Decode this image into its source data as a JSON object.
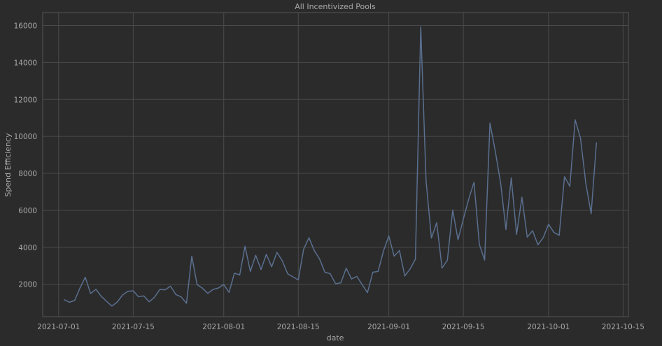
{
  "chart_data": {
    "type": "line",
    "title": "All Incentivized Pools",
    "xlabel": "date",
    "ylabel": "Spend Efficiency",
    "x_tick_labels": [
      "2021-07-01",
      "2021-07-15",
      "2021-08-01",
      "2021-08-15",
      "2021-09-01",
      "2021-09-15",
      "2021-10-01",
      "2021-10-15"
    ],
    "y_tick_values": [
      2000,
      4000,
      6000,
      8000,
      10000,
      12000,
      14000,
      16000
    ],
    "xlim": [
      "2021-06-28",
      "2021-10-16"
    ],
    "ylim": [
      250,
      16700
    ],
    "grid": true,
    "series": [
      {
        "color": "#5a6f8f",
        "points": [
          [
            "2021-07-02",
            1180
          ],
          [
            "2021-07-03",
            1030
          ],
          [
            "2021-07-04",
            1120
          ],
          [
            "2021-07-05",
            1800
          ],
          [
            "2021-07-06",
            2380
          ],
          [
            "2021-07-07",
            1500
          ],
          [
            "2021-07-08",
            1730
          ],
          [
            "2021-07-09",
            1350
          ],
          [
            "2021-07-10",
            1080
          ],
          [
            "2021-07-11",
            820
          ],
          [
            "2021-07-12",
            1040
          ],
          [
            "2021-07-13",
            1420
          ],
          [
            "2021-07-14",
            1620
          ],
          [
            "2021-07-15",
            1650
          ],
          [
            "2021-07-16",
            1330
          ],
          [
            "2021-07-17",
            1370
          ],
          [
            "2021-07-18",
            1050
          ],
          [
            "2021-07-19",
            1300
          ],
          [
            "2021-07-20",
            1720
          ],
          [
            "2021-07-21",
            1700
          ],
          [
            "2021-07-22",
            1900
          ],
          [
            "2021-07-23",
            1450
          ],
          [
            "2021-07-24",
            1320
          ],
          [
            "2021-07-25",
            970
          ],
          [
            "2021-07-26",
            3520
          ],
          [
            "2021-07-27",
            1980
          ],
          [
            "2021-07-28",
            1790
          ],
          [
            "2021-07-29",
            1510
          ],
          [
            "2021-07-30",
            1720
          ],
          [
            "2021-07-31",
            1800
          ],
          [
            "2021-08-01",
            1990
          ],
          [
            "2021-08-02",
            1560
          ],
          [
            "2021-08-03",
            2600
          ],
          [
            "2021-08-04",
            2510
          ],
          [
            "2021-08-05",
            4060
          ],
          [
            "2021-08-06",
            2700
          ],
          [
            "2021-08-07",
            3570
          ],
          [
            "2021-08-08",
            2800
          ],
          [
            "2021-08-09",
            3620
          ],
          [
            "2021-08-10",
            2950
          ],
          [
            "2021-08-11",
            3730
          ],
          [
            "2021-08-12",
            3270
          ],
          [
            "2021-08-13",
            2570
          ],
          [
            "2021-08-14",
            2400
          ],
          [
            "2021-08-15",
            2240
          ],
          [
            "2021-08-16",
            3890
          ],
          [
            "2021-08-17",
            4520
          ],
          [
            "2021-08-18",
            3830
          ],
          [
            "2021-08-19",
            3370
          ],
          [
            "2021-08-20",
            2650
          ],
          [
            "2021-08-21",
            2570
          ],
          [
            "2021-08-22",
            2030
          ],
          [
            "2021-08-23",
            2080
          ],
          [
            "2021-08-24",
            2870
          ],
          [
            "2021-08-25",
            2290
          ],
          [
            "2021-08-26",
            2430
          ],
          [
            "2021-08-27",
            1980
          ],
          [
            "2021-08-28",
            1550
          ],
          [
            "2021-08-29",
            2650
          ],
          [
            "2021-08-30",
            2700
          ],
          [
            "2021-08-31",
            3800
          ],
          [
            "2021-09-01",
            4620
          ],
          [
            "2021-09-02",
            3520
          ],
          [
            "2021-09-03",
            3830
          ],
          [
            "2021-09-04",
            2450
          ],
          [
            "2021-09-05",
            2830
          ],
          [
            "2021-09-06",
            3360
          ],
          [
            "2021-09-07",
            15920
          ],
          [
            "2021-09-08",
            7600
          ],
          [
            "2021-09-09",
            4500
          ],
          [
            "2021-09-10",
            5330
          ],
          [
            "2021-09-11",
            2880
          ],
          [
            "2021-09-12",
            3300
          ],
          [
            "2021-09-13",
            6020
          ],
          [
            "2021-09-14",
            4410
          ],
          [
            "2021-09-15",
            5530
          ],
          [
            "2021-09-16",
            6600
          ],
          [
            "2021-09-17",
            7520
          ],
          [
            "2021-09-18",
            4170
          ],
          [
            "2021-09-19",
            3310
          ],
          [
            "2021-09-20",
            10720
          ],
          [
            "2021-09-21",
            9200
          ],
          [
            "2021-09-22",
            7490
          ],
          [
            "2021-09-23",
            4960
          ],
          [
            "2021-09-24",
            7760
          ],
          [
            "2021-09-25",
            4700
          ],
          [
            "2021-09-26",
            6710
          ],
          [
            "2021-09-27",
            4550
          ],
          [
            "2021-09-28",
            4900
          ],
          [
            "2021-09-29",
            4140
          ],
          [
            "2021-09-30",
            4520
          ],
          [
            "2021-10-01",
            5250
          ],
          [
            "2021-10-02",
            4810
          ],
          [
            "2021-10-03",
            4650
          ],
          [
            "2021-10-04",
            7820
          ],
          [
            "2021-10-05",
            7300
          ],
          [
            "2021-10-06",
            10900
          ],
          [
            "2021-10-07",
            9900
          ],
          [
            "2021-10-08",
            7460
          ],
          [
            "2021-10-09",
            5820
          ],
          [
            "2021-10-10",
            9680
          ]
        ]
      }
    ]
  },
  "colors": {
    "background": "#2b2b2b",
    "plot_background": "#2b2b2b",
    "grid": "#4a4a4a",
    "frame": "#555555",
    "text": "#a9a9a9",
    "line": "#5a6f8f"
  }
}
